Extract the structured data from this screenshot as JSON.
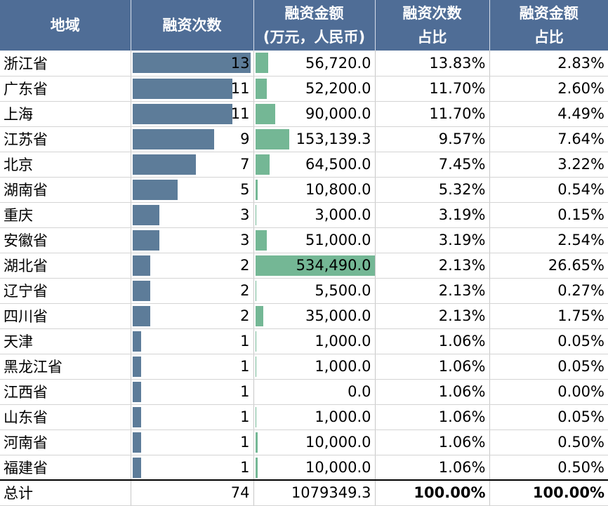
{
  "table": {
    "headers": [
      [
        "地域"
      ],
      [
        "融资次数"
      ],
      [
        "融资金额",
        "(万元，人民币)"
      ],
      [
        "融资次数",
        "占比"
      ],
      [
        "融资金额",
        "占比"
      ]
    ],
    "rows": [
      {
        "region": "浙江省",
        "count": "13",
        "amount": "56,720.0",
        "count_share": "13.83%",
        "amount_share": "2.83%"
      },
      {
        "region": "广东省",
        "count": "11",
        "amount": "52,200.0",
        "count_share": "11.70%",
        "amount_share": "2.60%"
      },
      {
        "region": "上海",
        "count": "11",
        "amount": "90,000.0",
        "count_share": "11.70%",
        "amount_share": "4.49%"
      },
      {
        "region": "江苏省",
        "count": "9",
        "amount": "153,139.3",
        "count_share": "9.57%",
        "amount_share": "7.64%"
      },
      {
        "region": "北京",
        "count": "7",
        "amount": "64,500.0",
        "count_share": "7.45%",
        "amount_share": "3.22%"
      },
      {
        "region": "湖南省",
        "count": "5",
        "amount": "10,800.0",
        "count_share": "5.32%",
        "amount_share": "0.54%"
      },
      {
        "region": "重庆",
        "count": "3",
        "amount": "3,000.0",
        "count_share": "3.19%",
        "amount_share": "0.15%"
      },
      {
        "region": "安徽省",
        "count": "3",
        "amount": "51,000.0",
        "count_share": "3.19%",
        "amount_share": "2.54%"
      },
      {
        "region": "湖北省",
        "count": "2",
        "amount": "534,490.0",
        "count_share": "2.13%",
        "amount_share": "26.65%"
      },
      {
        "region": "辽宁省",
        "count": "2",
        "amount": "5,500.0",
        "count_share": "2.13%",
        "amount_share": "0.27%"
      },
      {
        "region": "四川省",
        "count": "2",
        "amount": "35,000.0",
        "count_share": "2.13%",
        "amount_share": "1.75%"
      },
      {
        "region": "天津",
        "count": "1",
        "amount": "1,000.0",
        "count_share": "1.06%",
        "amount_share": "0.05%"
      },
      {
        "region": "黑龙江省",
        "count": "1",
        "amount": "1,000.0",
        "count_share": "1.06%",
        "amount_share": "0.05%"
      },
      {
        "region": "江西省",
        "count": "1",
        "amount": "0.0",
        "count_share": "1.06%",
        "amount_share": "0.00%"
      },
      {
        "region": "山东省",
        "count": "1",
        "amount": "1,000.0",
        "count_share": "1.06%",
        "amount_share": "0.05%"
      },
      {
        "region": "河南省",
        "count": "1",
        "amount": "10,000.0",
        "count_share": "1.06%",
        "amount_share": "0.50%"
      },
      {
        "region": "福建省",
        "count": "1",
        "amount": "10,000.0",
        "count_share": "1.06%",
        "amount_share": "0.50%"
      }
    ],
    "total": {
      "region": "总计",
      "count": "74",
      "amount": "1079349.3",
      "count_share": "100.00%",
      "amount_share": "100.00%"
    }
  },
  "colors": {
    "header_bg": "#4f6d96",
    "count_bar": "#5d7c99",
    "amount_bar": "#74b795"
  },
  "chart_data": {
    "type": "table",
    "columns": [
      "地域",
      "融资次数",
      "融资金额 (万元，人民币)",
      "融资次数 占比",
      "融资金额 占比"
    ],
    "categories": [
      "浙江省",
      "广东省",
      "上海",
      "江苏省",
      "北京",
      "湖南省",
      "重庆",
      "安徽省",
      "湖北省",
      "辽宁省",
      "四川省",
      "天津",
      "黑龙江省",
      "江西省",
      "山东省",
      "河南省",
      "福建省"
    ],
    "series": [
      {
        "name": "融资次数",
        "values": [
          13,
          11,
          11,
          9,
          7,
          5,
          3,
          3,
          2,
          2,
          2,
          1,
          1,
          1,
          1,
          1,
          1
        ]
      },
      {
        "name": "融资金额",
        "values": [
          56720.0,
          52200.0,
          90000.0,
          153139.3,
          64500.0,
          10800.0,
          3000.0,
          51000.0,
          534490.0,
          5500.0,
          35000.0,
          1000.0,
          1000.0,
          0.0,
          1000.0,
          10000.0,
          10000.0
        ]
      }
    ]
  }
}
